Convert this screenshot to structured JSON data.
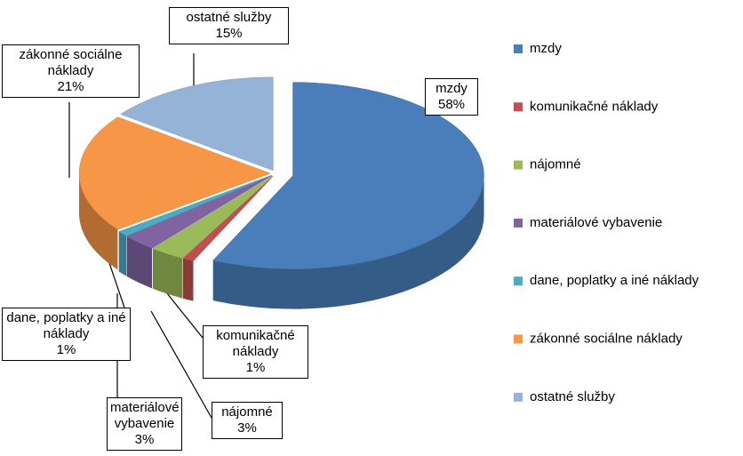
{
  "chart_data": {
    "type": "pie",
    "categories": [
      "mzdy",
      "komunikačné náklady",
      "nájomné",
      "materiálové vybavenie",
      "dane, poplatky a iné náklady",
      "zákonné sociálne náklady",
      "ostatné služby"
    ],
    "values": [
      58,
      1,
      3,
      3,
      1,
      21,
      15
    ],
    "value_labels": [
      "58%",
      "1%",
      "3%",
      "3%",
      "1%",
      "21%",
      "15%"
    ],
    "colors": [
      "#4a7ebb",
      "#c0504d",
      "#9bbb59",
      "#8064a2",
      "#4bacc6",
      "#f79646",
      "#95b3d7"
    ],
    "legend": "right"
  }
}
